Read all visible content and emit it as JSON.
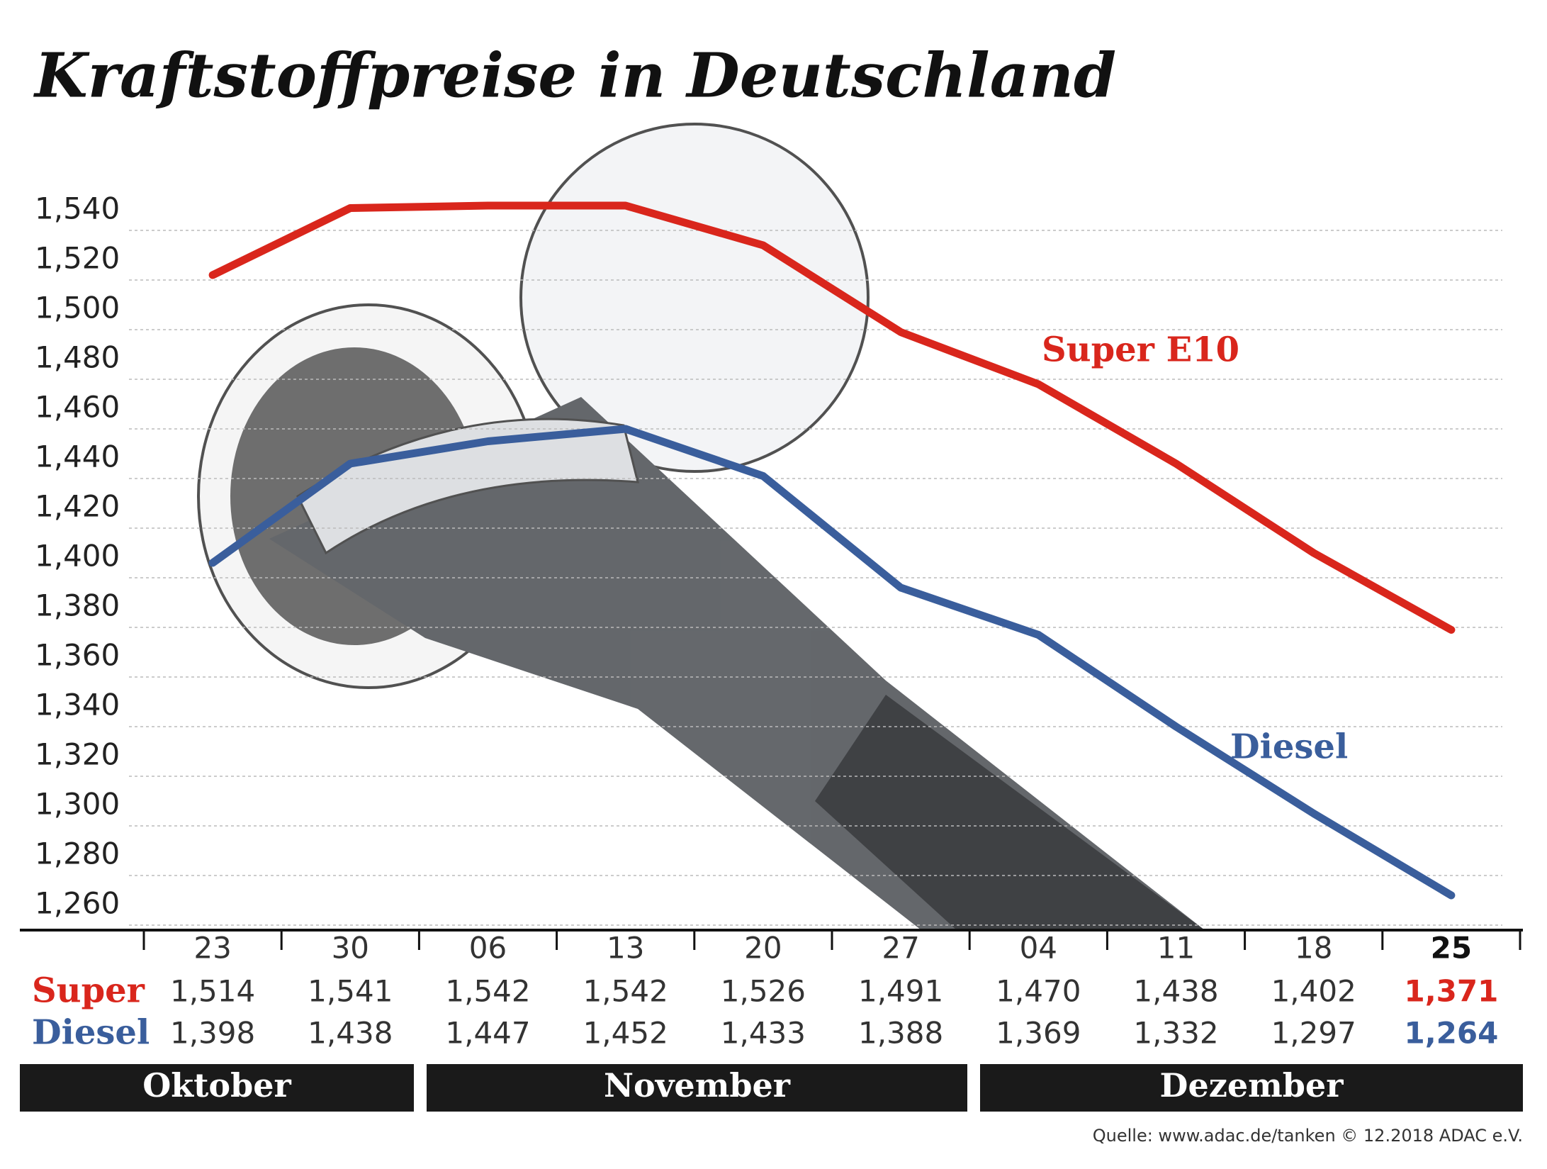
{
  "chart_data": {
    "type": "line",
    "title": "Kraftstoffpreise in Deutschland",
    "categories": [
      "23",
      "30",
      "06",
      "13",
      "20",
      "27",
      "04",
      "11",
      "18",
      "25"
    ],
    "months": [
      "Oktober",
      "November",
      "Dezember"
    ],
    "row_labels": [
      "Super",
      "Diesel"
    ],
    "series": [
      {
        "name": "Super E10",
        "color": "#d9261c",
        "values": [
          1.514,
          1.541,
          1.542,
          1.542,
          1.526,
          1.491,
          1.47,
          1.438,
          1.402,
          1.371
        ],
        "value_labels": [
          "1,514",
          "1,541",
          "1,542",
          "1,542",
          "1,526",
          "1,491",
          "1,470",
          "1,438",
          "1,402",
          "1,371"
        ]
      },
      {
        "name": "Diesel",
        "color": "#3a5e9c",
        "values": [
          1.398,
          1.438,
          1.447,
          1.452,
          1.433,
          1.388,
          1.369,
          1.332,
          1.297,
          1.264
        ],
        "value_labels": [
          "1,398",
          "1,438",
          "1,447",
          "1,452",
          "1,433",
          "1,388",
          "1,369",
          "1,332",
          "1,297",
          "1,264"
        ]
      }
    ],
    "ylim": [
      1.25,
      1.56
    ],
    "yticks": [
      {
        "value": 1.26,
        "label": "1,260"
      },
      {
        "value": 1.28,
        "label": "1,280"
      },
      {
        "value": 1.3,
        "label": "1,300"
      },
      {
        "value": 1.32,
        "label": "1,320"
      },
      {
        "value": 1.34,
        "label": "1,340"
      },
      {
        "value": 1.36,
        "label": "1,360"
      },
      {
        "value": 1.38,
        "label": "1,380"
      },
      {
        "value": 1.4,
        "label": "1,400"
      },
      {
        "value": 1.42,
        "label": "1,420"
      },
      {
        "value": 1.44,
        "label": "1,440"
      },
      {
        "value": 1.46,
        "label": "1,460"
      },
      {
        "value": 1.48,
        "label": "1,480"
      },
      {
        "value": 1.5,
        "label": "1,500"
      },
      {
        "value": 1.52,
        "label": "1,520"
      },
      {
        "value": 1.54,
        "label": "1,540"
      }
    ],
    "grid": true,
    "source": "Quelle: www.adac.de/tanken   © 12.2018  ADAC e.V."
  }
}
